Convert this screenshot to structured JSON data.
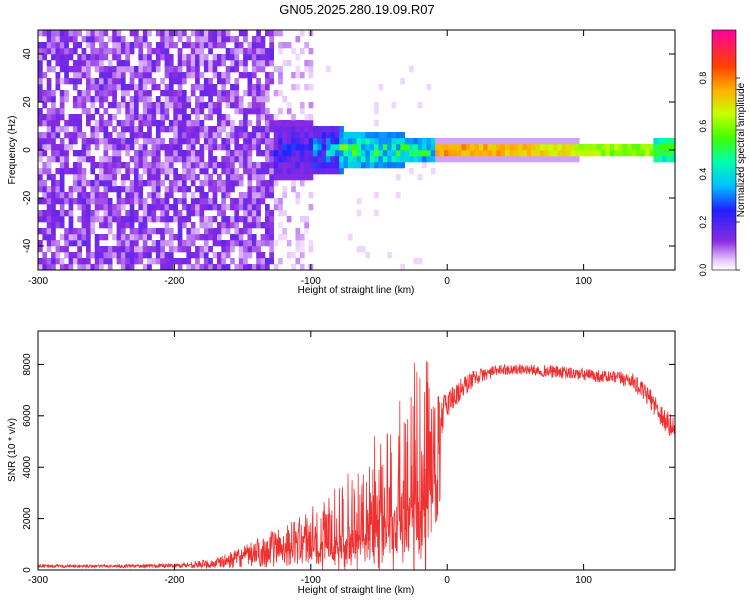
{
  "title": "GN05.2025.280.19.09.R07",
  "chart_data": [
    {
      "type": "heatmap",
      "xlabel": "Height of straight line (km)",
      "ylabel": "Frequency (Hz)",
      "xlim": [
        -300,
        167
      ],
      "ylim": [
        -50,
        50
      ],
      "xticks": [
        -300,
        -200,
        -100,
        0,
        100
      ],
      "yticks": [
        -40,
        -20,
        0,
        20,
        40
      ],
      "colorbar": {
        "label": "Normalized spectral amplitude",
        "range": [
          0,
          1
        ],
        "ticks": [
          "0.0",
          "0.2",
          "0.4",
          "0.6",
          "0.8"
        ]
      },
      "description_points": [
        {
          "x": -300,
          "amp_bg": 0.15
        },
        {
          "x": -130,
          "amp_bg": 0.1
        },
        {
          "x": -100,
          "amp_bg": 0.03
        },
        {
          "x": 0,
          "amp_peak": 0.9
        },
        {
          "x": 100,
          "amp_peak": 0.95
        },
        {
          "x": 160,
          "amp_peak": 0.5
        }
      ]
    },
    {
      "type": "line",
      "xlabel": "Height of straight line (km)",
      "ylabel": "SNR (10 * v/v)",
      "xlim": [
        -300,
        167
      ],
      "ylim": [
        0,
        9300
      ],
      "xticks": [
        -300,
        -200,
        -100,
        0,
        100
      ],
      "yticks": [
        0,
        2000,
        4000,
        6000,
        8000
      ],
      "color": "#f03030",
      "series_envelope": {
        "x": [
          -300,
          -250,
          -200,
          -170,
          -150,
          -130,
          -110,
          -90,
          -70,
          -50,
          -35,
          -25,
          -15,
          -5,
          0,
          10,
          20,
          40,
          60,
          80,
          100,
          120,
          135,
          150,
          160,
          167
        ],
        "mean": [
          150,
          150,
          170,
          250,
          500,
          800,
          1100,
          1400,
          2000,
          2600,
          3200,
          3800,
          4200,
          5800,
          6500,
          7000,
          7500,
          7800,
          7800,
          7700,
          7600,
          7500,
          7400,
          6600,
          5800,
          5400
        ],
        "spread": [
          60,
          60,
          80,
          200,
          400,
          700,
          900,
          1500,
          2200,
          2800,
          3400,
          4200,
          4500,
          800,
          600,
          500,
          300,
          200,
          200,
          250,
          250,
          250,
          300,
          400,
          500,
          500
        ]
      }
    }
  ]
}
